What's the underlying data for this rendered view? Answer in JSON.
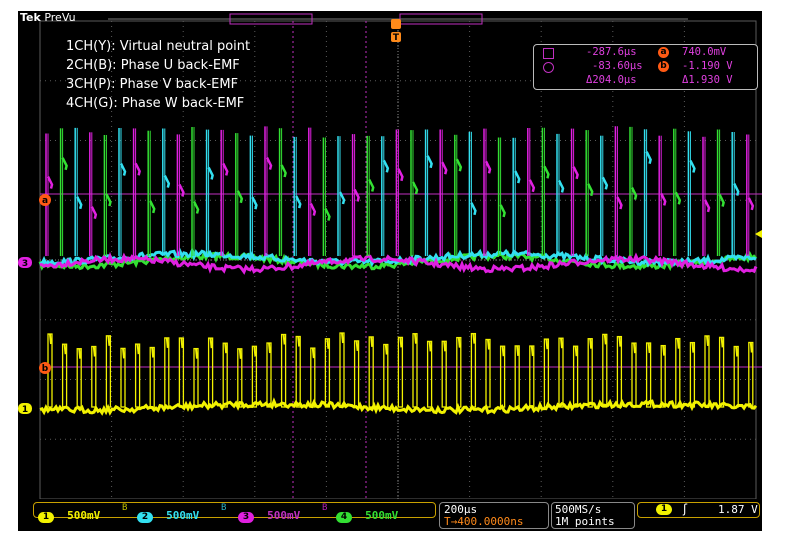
{
  "header": {
    "brand": "Tek",
    "mode": "PreVu"
  },
  "legend": [
    "1CH(Y): Virtual neutral point",
    "2CH(B): Phase U back-EMF",
    "3CH(P): Phase V back-EMF",
    "4CH(G): Phase W back-EMF"
  ],
  "cursors": {
    "time_a": "-287.6µs",
    "time_b": "-83.60µs",
    "time_delta": "Δ204.0µs",
    "volt_a": "740.0mV",
    "volt_b": "-1.190 V",
    "volt_delta": "Δ1.930 V",
    "marker_a": "a",
    "marker_b": "b"
  },
  "trigger_marker": "T",
  "channel_markers": {
    "ch1": "1",
    "ch3": "3"
  },
  "channels": [
    {
      "num": "1",
      "scale": "500mV",
      "color": "#f2f200"
    },
    {
      "num": "2",
      "scale": "500mV",
      "color": "#33e0f0"
    },
    {
      "num": "3",
      "scale": "500mV",
      "color": "#e020e0"
    },
    {
      "num": "4",
      "scale": "500mV",
      "color": "#33e033"
    }
  ],
  "bw_symbol": "B",
  "timebase": {
    "scale": "200µs",
    "position": "T→400.0000ns"
  },
  "acquisition": {
    "rate": "500MS/s",
    "points": "1M points"
  },
  "trigger": {
    "source": "1",
    "slope": "ʃ",
    "level": "1.87 V"
  },
  "colors": {
    "yellow": "#f2f200",
    "cyan": "#33e0f0",
    "magenta": "#e020e0",
    "green": "#33e033",
    "orange": "#ff6a1a",
    "grid": "#5a5a5a"
  }
}
